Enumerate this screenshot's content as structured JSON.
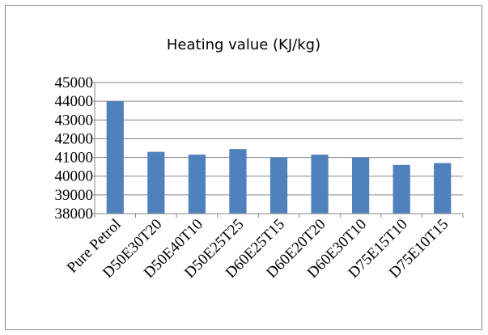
{
  "chart_data": {
    "type": "bar",
    "title": "Heating value (KJ/kg)",
    "xlabel": "",
    "ylabel": "",
    "categories": [
      "Pure Petrol",
      "D50E30T20",
      "D50E40T10",
      "D50E25T25",
      "D60E25T15",
      "D60E20T20",
      "D60E30T10",
      "D75E15T10",
      "D75E10T15"
    ],
    "values": [
      44000,
      41300,
      41150,
      41450,
      41000,
      41150,
      41000,
      40600,
      40700
    ],
    "ylim": [
      38000,
      45000
    ],
    "yticks": [
      38000,
      39000,
      40000,
      41000,
      42000,
      43000,
      44000,
      45000
    ],
    "grid": true,
    "legend": "none",
    "bar_color": "#4f81bd",
    "grid_color": "#868686"
  }
}
